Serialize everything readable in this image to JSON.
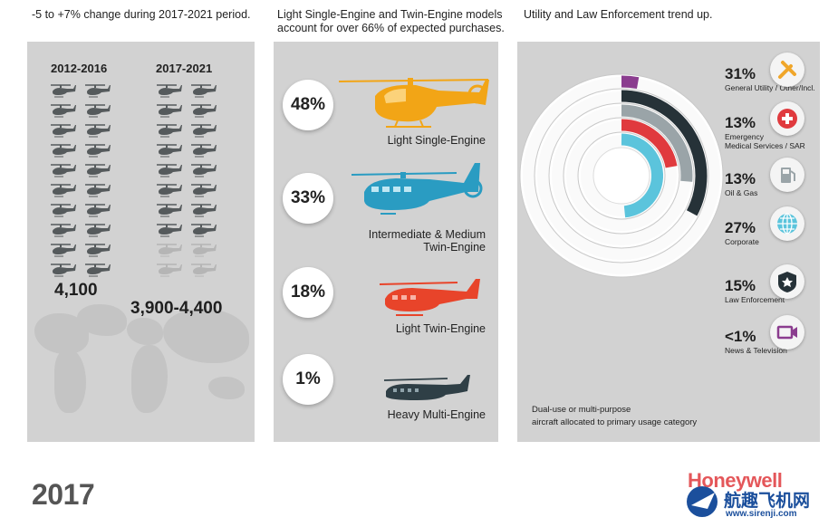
{
  "captions": {
    "left": "-5 to +7% change during 2017-2021 period.",
    "middle_line1": "Light Single-Engine and Twin-Engine models",
    "middle_line2": "account for over 66% of expected purchases.",
    "right": "Utility and Law Enforcement trend up."
  },
  "forecast": {
    "period_a": "2012-2016",
    "period_b": "2017-2021",
    "value_a": "4,100",
    "value_b": "3,900-4,400"
  },
  "segments": [
    {
      "pct": "48%",
      "label_line1": "Light Single-Engine",
      "label_line2": "",
      "color": "#f2a516"
    },
    {
      "pct": "33%",
      "label_line1": "Intermediate & Medium",
      "label_line2": "Twin-Engine",
      "color": "#2a9cc2"
    },
    {
      "pct": "18%",
      "label_line1": "Light Twin-Engine",
      "label_line2": "",
      "color": "#e8442a"
    },
    {
      "pct": "1%",
      "label_line1": "Heavy Multi-Engine",
      "label_line2": "",
      "color": "#2f3f46"
    }
  ],
  "categories": [
    {
      "pct": "31%",
      "name_line1": "General Utility / Other/Incl.",
      "name_line2": "",
      "icon": "tools-icon",
      "color": "#f0a62a"
    },
    {
      "pct": "13%",
      "name_line1": "Emergency",
      "name_line2": "Medical Services / SAR",
      "icon": "medical-cross-icon",
      "color": "#e03a3e"
    },
    {
      "pct": "13%",
      "name_line1": "Oil & Gas",
      "name_line2": "",
      "icon": "fuel-pump-icon",
      "color": "#9aa4a8"
    },
    {
      "pct": "27%",
      "name_line1": "Corporate",
      "name_line2": "",
      "icon": "globe-icon",
      "color": "#5bc4dc"
    },
    {
      "pct": "15%",
      "name_line1": "Law Enforcement",
      "name_line2": "",
      "icon": "police-badge-icon",
      "color": "#263238"
    },
    {
      "pct": "<1%",
      "name_line1": "News & Television",
      "name_line2": "",
      "icon": "video-camera-icon",
      "color": "#8b3d8f"
    }
  ],
  "note": {
    "line1": "Dual-use or multi-purpose",
    "line2": "aircraft allocated to primary usage category"
  },
  "footer": {
    "year": "2017",
    "brand": "Honeywell",
    "watermark": "航趣飞机网",
    "watermark_url": "www.sirenji.com"
  }
}
